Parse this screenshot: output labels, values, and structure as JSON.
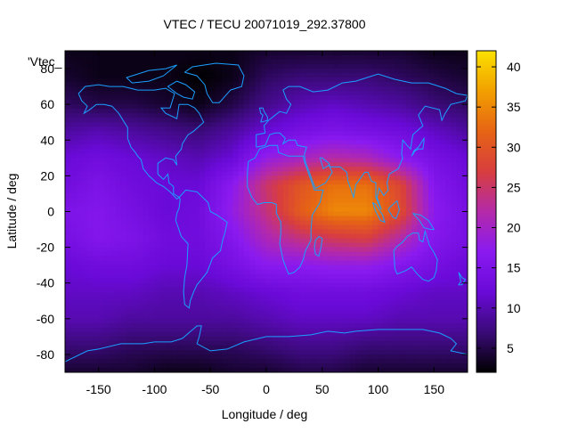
{
  "chart_data": {
    "type": "heatmap",
    "title": "VTEC / TECU 20071019_292.37800",
    "xlabel": "Longitude / deg",
    "ylabel": "Latitude / deg",
    "xlim": [
      -180,
      180
    ],
    "ylim": [
      -90,
      90
    ],
    "x_ticks": [
      -150,
      -100,
      -50,
      0,
      50,
      100,
      150
    ],
    "y_ticks": [
      -80,
      -60,
      -40,
      -20,
      0,
      20,
      40,
      60,
      80
    ],
    "colorbar": {
      "range": [
        2,
        42
      ],
      "ticks": [
        5,
        10,
        15,
        20,
        25,
        30,
        35,
        40
      ],
      "colormap": [
        "#000000",
        "#3a0a78",
        "#6a0ad8",
        "#8a1af0",
        "#b42aa8",
        "#d83e3e",
        "#e66414",
        "#f2a000",
        "#fbe100"
      ]
    },
    "key_label": "'Vtec_",
    "vtec_grid": {
      "lon": [
        -180,
        -150,
        -120,
        -90,
        -60,
        -30,
        0,
        30,
        60,
        90,
        120,
        150,
        180
      ],
      "lat": [
        90,
        75,
        60,
        45,
        30,
        15,
        0,
        -15,
        -30,
        -45,
        -60,
        -75,
        -90
      ],
      "values": [
        [
          3,
          3,
          3,
          3,
          3,
          3,
          4,
          4,
          4,
          4,
          4,
          3,
          3
        ],
        [
          4,
          3,
          3,
          3,
          2,
          3,
          6,
          7,
          7,
          7,
          6,
          5,
          4
        ],
        [
          6,
          5,
          5,
          4,
          3,
          5,
          8,
          10,
          11,
          10,
          9,
          7,
          6
        ],
        [
          9,
          10,
          9,
          8,
          7,
          9,
          12,
          14,
          15,
          14,
          13,
          11,
          9
        ],
        [
          12,
          13,
          12,
          11,
          10,
          12,
          18,
          20,
          22,
          21,
          17,
          14,
          12
        ],
        [
          13,
          15,
          13,
          12,
          12,
          17,
          25,
          30,
          33,
          33,
          28,
          16,
          13
        ],
        [
          15,
          16,
          14,
          12,
          13,
          18,
          24,
          31,
          35,
          35,
          29,
          17,
          14
        ],
        [
          14,
          16,
          15,
          13,
          13,
          16,
          21,
          24,
          26,
          27,
          22,
          16,
          14
        ],
        [
          12,
          13,
          13,
          12,
          12,
          14,
          17,
          17,
          18,
          18,
          16,
          14,
          12
        ],
        [
          11,
          11,
          11,
          10,
          10,
          11,
          12,
          13,
          13,
          13,
          12,
          11,
          11
        ],
        [
          10,
          10,
          9,
          9,
          9,
          9,
          10,
          11,
          11,
          11,
          10,
          10,
          10
        ],
        [
          7,
          7,
          6,
          6,
          6,
          6,
          7,
          8,
          8,
          7,
          7,
          7,
          7
        ],
        [
          4,
          4,
          4,
          3,
          3,
          4,
          4,
          5,
          5,
          4,
          4,
          4,
          4
        ]
      ]
    }
  }
}
